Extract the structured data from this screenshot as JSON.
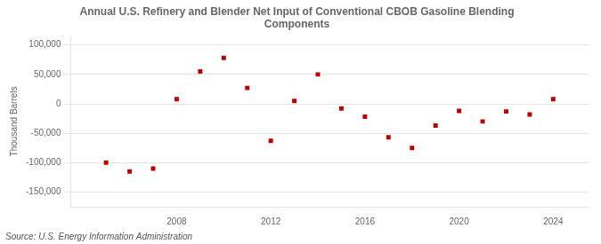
{
  "chart_data": {
    "type": "scatter",
    "title": "Annual U.S. Refinery and Blender Net Input of Conventional CBOB Gasoline Blending\nComponents",
    "ylabel": "Thousand Barrels",
    "annotations": [
      "Source: U.S. Energy Information Administration"
    ],
    "x": [
      2005,
      2006,
      2007,
      2008,
      2009,
      2010,
      2011,
      2012,
      2013,
      2014,
      2015,
      2016,
      2017,
      2018,
      2019,
      2020,
      2021,
      2022,
      2023,
      2024
    ],
    "values": [
      -100000,
      -115000,
      -110000,
      8000,
      55000,
      78000,
      27000,
      -63000,
      5000,
      50000,
      -8000,
      -22000,
      -57000,
      -75000,
      -37000,
      -12000,
      -30000,
      -13000,
      -18000,
      8000
    ],
    "color": "#c00000",
    "marker": "square",
    "xlim": [
      2003.5,
      2025.5
    ],
    "xticks": [
      2008,
      2012,
      2016,
      2020,
      2024
    ],
    "ylim": [
      -175000,
      115000
    ],
    "yticks": [
      {
        "value": -150000,
        "label": "-150,000"
      },
      {
        "value": -100000,
        "label": "-100,000"
      },
      {
        "value": -50000,
        "label": "-50,000"
      },
      0,
      {
        "value": 50000,
        "label": "50,000"
      },
      {
        "value": 100000,
        "label": "100,000"
      }
    ],
    "grid": "y"
  }
}
